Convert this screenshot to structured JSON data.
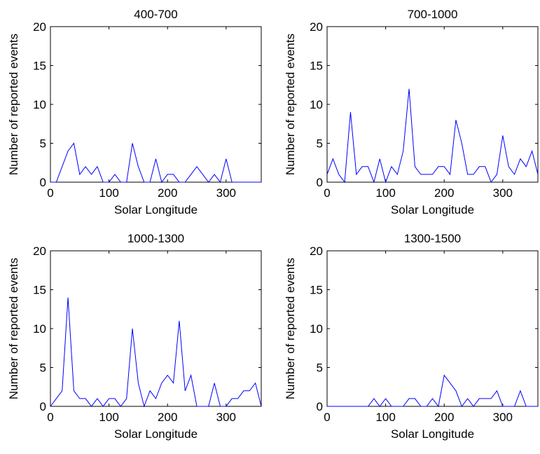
{
  "chart_data": [
    {
      "type": "line",
      "title": "400-700",
      "xlabel": "Solar Longitude",
      "ylabel": "Number of reported events",
      "xlim": [
        0,
        360
      ],
      "ylim": [
        0,
        20
      ],
      "xticks": [
        0,
        100,
        200,
        300
      ],
      "yticks": [
        0,
        5,
        10,
        15,
        20
      ],
      "grid": false,
      "line_color": "#0000ff",
      "x": [
        0,
        10,
        20,
        30,
        40,
        50,
        60,
        70,
        80,
        90,
        100,
        110,
        120,
        130,
        140,
        150,
        160,
        170,
        180,
        190,
        200,
        210,
        220,
        230,
        240,
        250,
        260,
        270,
        280,
        290,
        300,
        310,
        320,
        330,
        340,
        350,
        360
      ],
      "series": [
        {
          "values": [
            0,
            0,
            2,
            4,
            5,
            1,
            2,
            1,
            2,
            0,
            0,
            1,
            0,
            0,
            5,
            2,
            0,
            0,
            3,
            0,
            1,
            1,
            0,
            0,
            1,
            2,
            1,
            0,
            1,
            0,
            3,
            0,
            0,
            0,
            0,
            0,
            0
          ]
        }
      ]
    },
    {
      "type": "line",
      "title": "700-1000",
      "xlabel": "Solar Longitude",
      "ylabel": "Number of reported events",
      "xlim": [
        0,
        360
      ],
      "ylim": [
        0,
        20
      ],
      "xticks": [
        0,
        100,
        200,
        300
      ],
      "yticks": [
        0,
        5,
        10,
        15,
        20
      ],
      "grid": false,
      "line_color": "#0000ff",
      "x": [
        0,
        10,
        20,
        30,
        40,
        50,
        60,
        70,
        80,
        90,
        100,
        110,
        120,
        130,
        140,
        150,
        160,
        170,
        180,
        190,
        200,
        210,
        220,
        230,
        240,
        250,
        260,
        270,
        280,
        290,
        300,
        310,
        320,
        330,
        340,
        350,
        360
      ],
      "series": [
        {
          "values": [
            1,
            3,
            1,
            0,
            9,
            1,
            2,
            2,
            0,
            3,
            0,
            2,
            1,
            4,
            12,
            2,
            1,
            1,
            1,
            2,
            2,
            1,
            8,
            5,
            1,
            1,
            2,
            2,
            0,
            1,
            6,
            2,
            1,
            3,
            2,
            4,
            1
          ]
        }
      ]
    },
    {
      "type": "line",
      "title": "1000-1300",
      "xlabel": "Solar Longitude",
      "ylabel": "Number of reported events",
      "xlim": [
        0,
        360
      ],
      "ylim": [
        0,
        20
      ],
      "xticks": [
        0,
        100,
        200,
        300
      ],
      "yticks": [
        0,
        5,
        10,
        15,
        20
      ],
      "grid": false,
      "line_color": "#0000ff",
      "x": [
        0,
        10,
        20,
        30,
        40,
        50,
        60,
        70,
        80,
        90,
        100,
        110,
        120,
        130,
        140,
        150,
        160,
        170,
        180,
        190,
        200,
        210,
        220,
        230,
        240,
        250,
        260,
        270,
        280,
        290,
        300,
        310,
        320,
        330,
        340,
        350,
        360
      ],
      "series": [
        {
          "values": [
            0,
            1,
            2,
            14,
            2,
            1,
            1,
            0,
            1,
            0,
            1,
            1,
            0,
            1,
            10,
            3,
            0,
            2,
            1,
            3,
            4,
            3,
            11,
            2,
            4,
            0,
            0,
            0,
            3,
            0,
            0,
            1,
            1,
            2,
            2,
            3,
            0
          ]
        }
      ]
    },
    {
      "type": "line",
      "title": "1300-1500",
      "xlabel": "Solar Longitude",
      "ylabel": "Number of reported events",
      "xlim": [
        0,
        360
      ],
      "ylim": [
        0,
        20
      ],
      "xticks": [
        0,
        100,
        200,
        300
      ],
      "yticks": [
        0,
        5,
        10,
        15,
        20
      ],
      "grid": false,
      "line_color": "#0000ff",
      "x": [
        0,
        10,
        20,
        30,
        40,
        50,
        60,
        70,
        80,
        90,
        100,
        110,
        120,
        130,
        140,
        150,
        160,
        170,
        180,
        190,
        200,
        210,
        220,
        230,
        240,
        250,
        260,
        270,
        280,
        290,
        300,
        310,
        320,
        330,
        340,
        350,
        360
      ],
      "series": [
        {
          "values": [
            0,
            0,
            0,
            0,
            0,
            0,
            0,
            0,
            1,
            0,
            1,
            0,
            0,
            0,
            1,
            1,
            0,
            0,
            1,
            0,
            4,
            3,
            2,
            0,
            1,
            0,
            1,
            1,
            1,
            2,
            0,
            0,
            0,
            2,
            0,
            0,
            0
          ]
        }
      ]
    }
  ]
}
